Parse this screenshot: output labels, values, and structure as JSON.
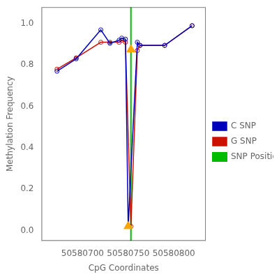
{
  "chart_data": {
    "type": "line",
    "xlabel": "CpG Coordinates",
    "ylabel": "Methylation Frequency",
    "series": [
      {
        "name": "C SNP",
        "color": "#0000bb",
        "marker": "circle",
        "line_style": "solid",
        "x": [
          50580672,
          50580693,
          50580720,
          50580730,
          50580740,
          50580743,
          50580747,
          50580750,
          50580760,
          50580763,
          50580790,
          50580820
        ],
        "values": [
          0.77,
          0.83,
          0.97,
          0.905,
          0.92,
          0.93,
          0.925,
          0.02,
          0.91,
          0.895,
          0.895,
          0.99
        ]
      },
      {
        "name": "G SNP",
        "color": "#cc1100",
        "marker": "circle",
        "line_style": "solid",
        "x": [
          50580672,
          50580693,
          50580720,
          50580730,
          50580740,
          50580743,
          50580747,
          50580753,
          50580760,
          50580763,
          50580790,
          50580820
        ],
        "values": [
          0.78,
          0.835,
          0.91,
          0.91,
          0.91,
          0.92,
          0.91,
          0.02,
          0.87,
          0.895,
          0.895,
          0.99
        ]
      },
      {
        "name": "SNP Position",
        "type": "vline",
        "color": "#00bb00",
        "line_style": "solid",
        "x": [
          50580753
        ]
      },
      {
        "type": "scatter",
        "marker": "triangle",
        "color": "#FFA500",
        "x": [
          50580753
        ],
        "values": [
          0.875
        ]
      },
      {
        "type": "scatter",
        "marker": "triangle",
        "color": "#FFA500",
        "x": [
          50580750
        ],
        "values": [
          0.02
        ]
      }
    ],
    "xlim": [
      50580655,
      50580835
    ],
    "ylim": [
      -0.05,
      1.08
    ],
    "xticks": [
      50580700,
      50580750,
      50580800
    ],
    "yticks": [
      {
        "value": 0.0,
        "label": "0.0"
      },
      0.2,
      0.4,
      0.6,
      0.8,
      {
        "value": 1.0,
        "label": "1.0"
      }
    ],
    "grid": false,
    "legend": "right"
  }
}
